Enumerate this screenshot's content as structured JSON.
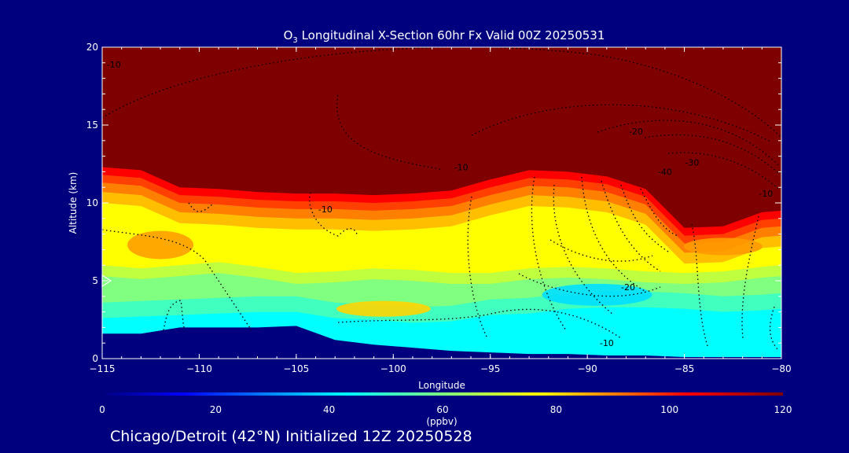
{
  "figure": {
    "title_main": "O",
    "title_sub": "3",
    "title_rest": " Longitudinal X-Section 60hr  Fx Valid 00Z 20250531",
    "footer": "Chicago/Detroit (42°N) Initialized 12Z 20250528",
    "colors": {
      "background": "#00007f",
      "terrain": "#00007f",
      "text": "#ffffff",
      "contour": "#000000"
    }
  },
  "chart_data": {
    "type": "heatmap",
    "xlabel": "Longitude",
    "ylabel": "Altitude (km)",
    "xlim": [
      -115,
      -80
    ],
    "ylim": [
      0,
      20
    ],
    "x_ticks": [
      -115,
      -110,
      -105,
      -100,
      -95,
      -90,
      -85,
      -80
    ],
    "x_tick_labels": [
      "−115",
      "−110",
      "−105",
      "−100",
      "−95",
      "−90",
      "−85",
      "−80"
    ],
    "y_ticks": [
      0,
      5,
      10,
      15,
      20
    ],
    "y_tick_labels": [
      "0",
      "5",
      "10",
      "15",
      "20"
    ],
    "colorbar": {
      "label": "(ppbv)",
      "range": [
        0,
        120
      ],
      "ticks": [
        0,
        20,
        40,
        60,
        80,
        100,
        120
      ],
      "tick_labels": [
        "0",
        "20",
        "40",
        "60",
        "80",
        "100",
        "120"
      ]
    },
    "marker": {
      "shape": "triangle",
      "altitude_km": 5
    },
    "ozone_field": {
      "longitudes": [
        -115,
        -113,
        -111,
        -109,
        -107,
        -105,
        -103,
        -101,
        -99,
        -97,
        -95,
        -93,
        -91,
        -89,
        -87,
        -85,
        -83,
        -81,
        -80
      ],
      "tropopause_km": [
        12.3,
        12.1,
        11.0,
        10.9,
        10.7,
        10.6,
        10.6,
        10.5,
        10.6,
        10.8,
        11.5,
        12.1,
        12.0,
        11.7,
        10.9,
        8.4,
        8.5,
        9.4,
        9.5
      ],
      "surface_km": [
        1.6,
        1.6,
        2.0,
        2.0,
        2.0,
        2.1,
        1.2,
        0.9,
        0.7,
        0.5,
        0.4,
        0.3,
        0.3,
        0.2,
        0.2,
        0.1,
        0.1,
        0.1,
        0.1
      ],
      "mid_band_top_km": [
        6.0,
        5.8,
        6.0,
        6.2,
        5.9,
        5.5,
        5.6,
        5.8,
        5.7,
        5.5,
        5.5,
        5.8,
        5.9,
        5.8,
        5.6,
        5.5,
        5.6,
        5.9,
        6.0
      ],
      "low_band_top_km": [
        3.6,
        3.7,
        3.8,
        3.9,
        4.0,
        4.0,
        3.6,
        3.5,
        3.3,
        3.4,
        3.8,
        3.9,
        4.2,
        4.3,
        4.3,
        4.2,
        4.0,
        4.1,
        4.2
      ]
    },
    "contour_labels": [
      {
        "text": "-10",
        "lon": -114.4,
        "alt": 18.9
      },
      {
        "text": "-20",
        "lon": -87.5,
        "alt": 14.6
      },
      {
        "text": "-30",
        "lon": -84.6,
        "alt": 12.6
      },
      {
        "text": "-40",
        "lon": -86.0,
        "alt": 12.0
      },
      {
        "text": "-10",
        "lon": -96.5,
        "alt": 12.3
      },
      {
        "text": "-10",
        "lon": -103.5,
        "alt": 9.6
      },
      {
        "text": "-10",
        "lon": -80.8,
        "alt": 10.6
      },
      {
        "text": "-20",
        "lon": -87.9,
        "alt": 4.6
      },
      {
        "text": "-10",
        "lon": -89.0,
        "alt": 1.0
      }
    ]
  }
}
